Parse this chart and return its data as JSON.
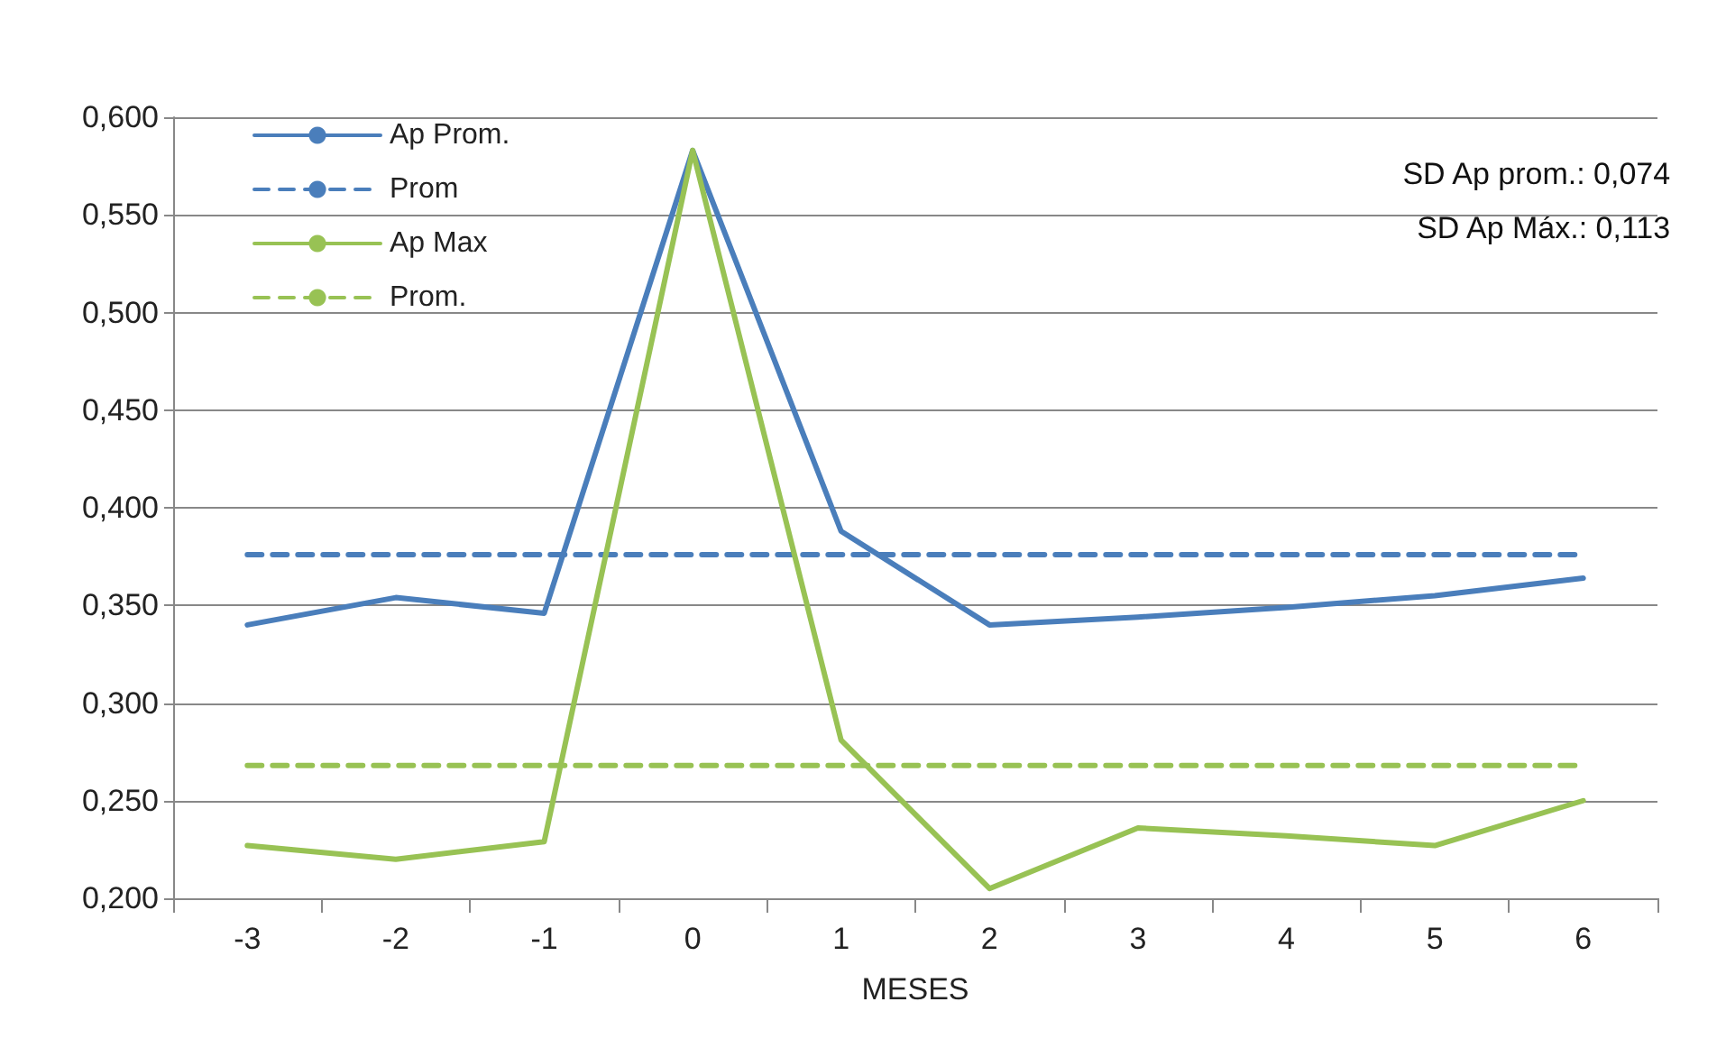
{
  "chart_data": {
    "type": "line",
    "xlabel": "MESES",
    "categories": [
      "-3",
      "-2",
      "-1",
      "0",
      "1",
      "2",
      "3",
      "4",
      "5",
      "6"
    ],
    "series": [
      {
        "name": "Ap Prom.",
        "color": "#4a7ebb",
        "line_style": "solid",
        "values": [
          0.34,
          0.354,
          0.346,
          0.583,
          0.388,
          0.34,
          0.344,
          0.349,
          0.355,
          0.364
        ]
      },
      {
        "name": "Prom",
        "color": "#4a7ebb",
        "line_style": "dashed",
        "values": [
          0.376,
          0.376,
          0.376,
          0.376,
          0.376,
          0.376,
          0.376,
          0.376,
          0.376,
          0.376
        ]
      },
      {
        "name": "Ap Max",
        "color": "#98c254",
        "line_style": "solid",
        "values": [
          0.227,
          0.22,
          0.229,
          0.583,
          0.281,
          0.205,
          0.236,
          0.232,
          0.227,
          0.25
        ]
      },
      {
        "name": "Prom.",
        "color": "#98c254",
        "line_style": "dashed",
        "values": [
          0.268,
          0.268,
          0.268,
          0.268,
          0.268,
          0.268,
          0.268,
          0.268,
          0.268,
          0.268
        ]
      }
    ],
    "ylim": [
      0.2,
      0.6
    ],
    "yticks": [
      {
        "value": 0.2,
        "label": "0,200"
      },
      {
        "value": 0.25,
        "label": "0,250"
      },
      {
        "value": 0.3,
        "label": "0,300"
      },
      {
        "value": 0.35,
        "label": "0,350"
      },
      {
        "value": 0.4,
        "label": "0,400"
      },
      {
        "value": 0.45,
        "label": "0,450"
      },
      {
        "value": 0.5,
        "label": "0,500"
      },
      {
        "value": 0.55,
        "label": "0,550"
      },
      {
        "value": 0.6,
        "label": "0,600"
      }
    ],
    "annotations": [
      "SD Ap prom.: 0,074",
      "SD Ap Máx.: 0,113"
    ],
    "grid": "y",
    "legend": "top left",
    "marker": "none"
  }
}
